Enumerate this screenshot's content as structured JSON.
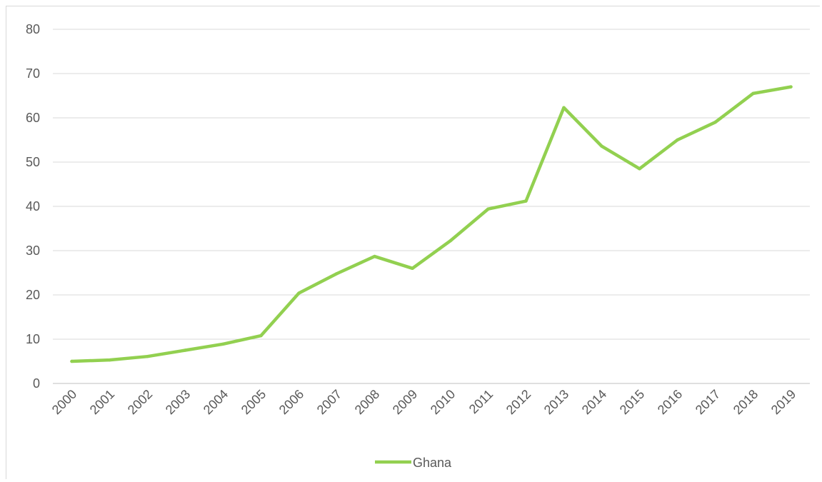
{
  "chart_data": {
    "type": "line",
    "title": "",
    "xlabel": "",
    "ylabel": "",
    "ylim": [
      0,
      80
    ],
    "y_ticks": [
      "0",
      "10",
      "20",
      "30",
      "40",
      "50",
      "60",
      "70",
      "80"
    ],
    "grid": "horizontal",
    "legend_position": "bottom",
    "categories": [
      "2000",
      "2001",
      "2002",
      "2003",
      "2004",
      "2005",
      "2006",
      "2007",
      "2008",
      "2009",
      "2010",
      "2011",
      "2012",
      "2013",
      "2014",
      "2015",
      "2016",
      "2017",
      "2018",
      "2019"
    ],
    "series": [
      {
        "name": "Ghana",
        "color": "#92d050",
        "values": [
          5.0,
          5.3,
          6.1,
          7.5,
          8.9,
          10.8,
          20.4,
          24.8,
          28.7,
          26.0,
          32.2,
          39.4,
          41.2,
          62.3,
          53.6,
          48.5,
          55.0,
          59.0,
          65.5,
          67.0
        ]
      }
    ]
  }
}
